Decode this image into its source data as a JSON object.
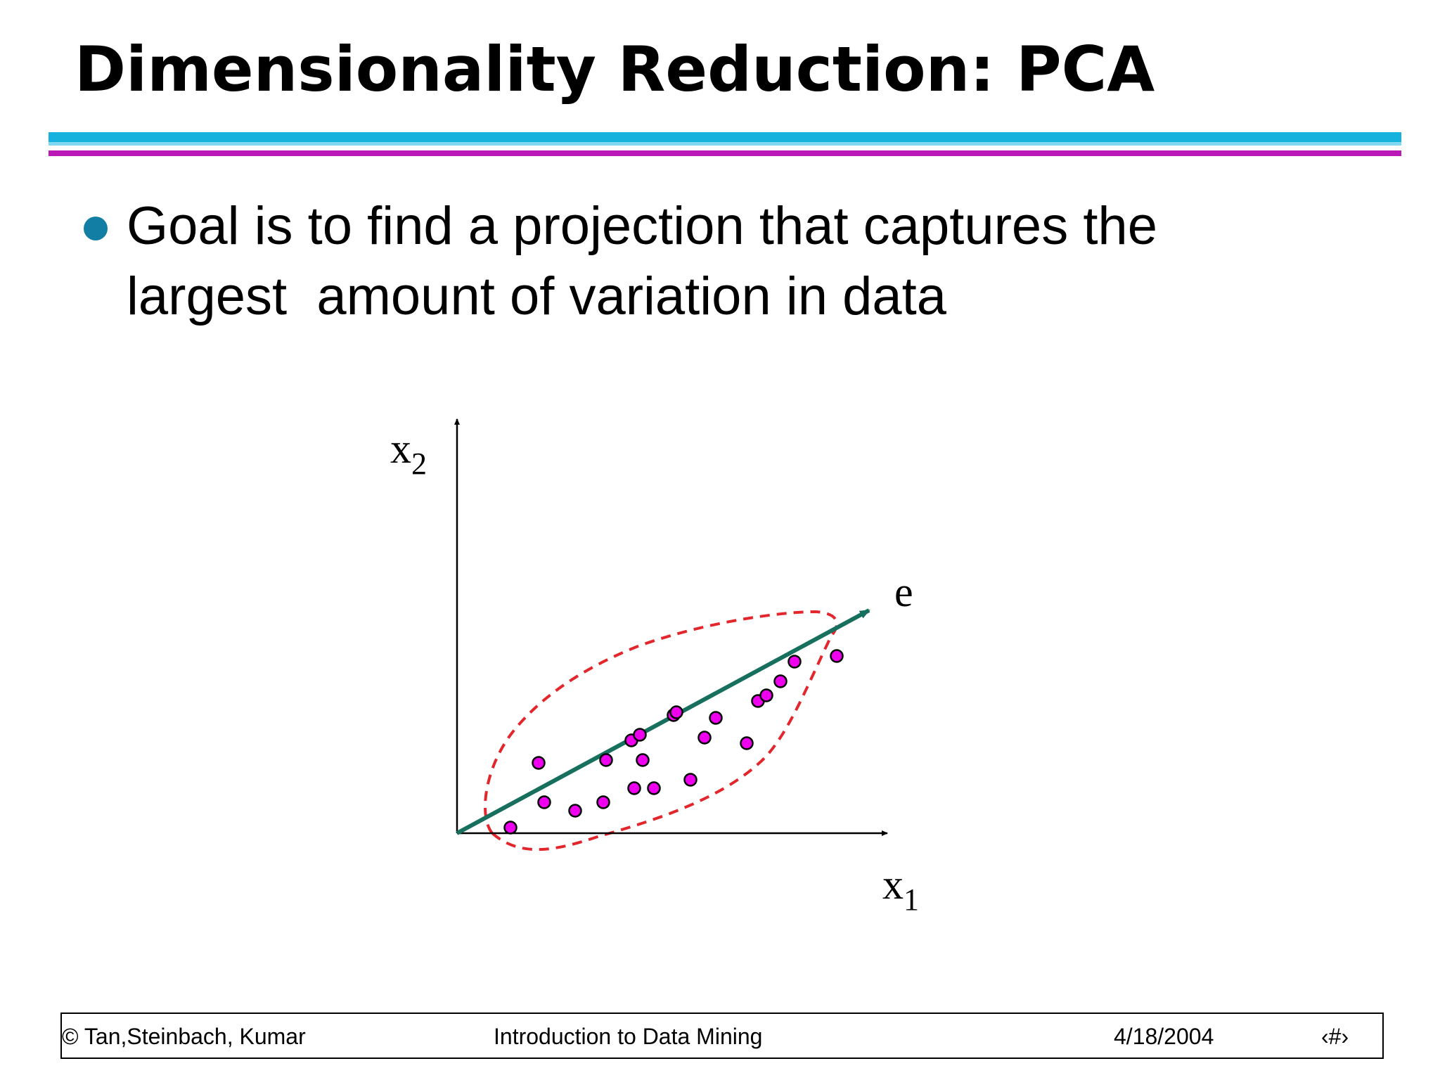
{
  "slide": {
    "title": "Dimensionality Reduction: PCA",
    "bullet": "Goal is to find a projection that captures the\nlargest  amount of variation in data"
  },
  "diagram": {
    "x_axis_label": "x",
    "x_axis_subscript": "1",
    "y_axis_label": "x",
    "y_axis_subscript": "2",
    "vector_label": "e",
    "colors": {
      "points": "#ee00ee",
      "vector": "#17705d",
      "boundary": "#e3262b",
      "axes": "#000000"
    },
    "points": [
      [
        0.95,
        0.1
      ],
      [
        1.55,
        0.55
      ],
      [
        2.1,
        0.4
      ],
      [
        1.45,
        1.25
      ],
      [
        2.65,
        1.3
      ],
      [
        3.1,
        1.65
      ],
      [
        3.15,
        0.8
      ],
      [
        3.25,
        1.75
      ],
      [
        3.3,
        1.3
      ],
      [
        3.5,
        0.8
      ],
      [
        3.85,
        2.1
      ],
      [
        3.9,
        2.15
      ],
      [
        4.15,
        0.95
      ],
      [
        4.4,
        1.7
      ],
      [
        4.6,
        2.05
      ],
      [
        5.15,
        1.6
      ],
      [
        5.35,
        2.35
      ],
      [
        5.5,
        2.45
      ],
      [
        5.75,
        2.7
      ],
      [
        6.0,
        3.05
      ],
      [
        6.75,
        3.15
      ],
      [
        2.6,
        0.55
      ]
    ]
  },
  "footer": {
    "authors": "© Tan,Steinbach, Kumar",
    "book": "Introduction to Data Mining",
    "date": "4/18/2004",
    "page": "‹#›"
  }
}
